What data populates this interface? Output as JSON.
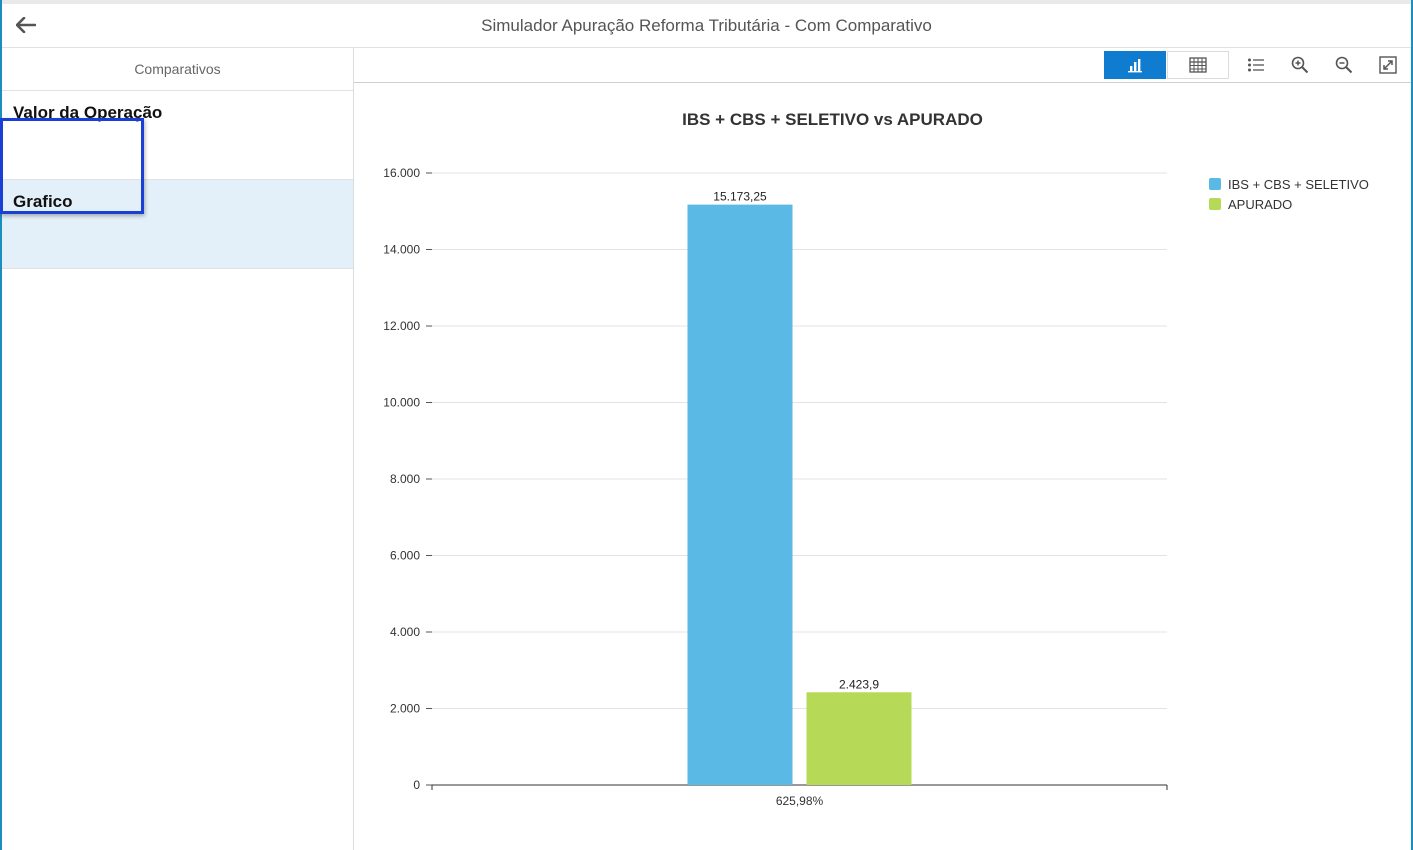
{
  "header": {
    "title": "Simulador Apuração Reforma Tributária - Com Comparativo"
  },
  "sidebar": {
    "title": "Comparativos",
    "items": [
      {
        "label": "Valor da Operação"
      },
      {
        "label": "Grafico"
      }
    ]
  },
  "toolbar": {
    "buttons": [
      "chart-icon",
      "table-icon",
      "legend-list-icon",
      "zoom-in-icon",
      "zoom-out-icon",
      "expand-icon"
    ],
    "active": "chart-icon"
  },
  "colors": {
    "accent": "#0f7ccf",
    "series1": "#5bb9e6",
    "series2": "#b6d957"
  },
  "chart_data": {
    "type": "bar",
    "title": "IBS + CBS + SELETIVO vs APURADO",
    "categories": [
      "625,98%"
    ],
    "series": [
      {
        "name": "IBS + CBS + SELETIVO",
        "values": [
          15173.25
        ],
        "label": "15.173,25",
        "color": "#5bb9e6"
      },
      {
        "name": "APURADO",
        "values": [
          2423.9
        ],
        "label": "2.423,9",
        "color": "#b6d957"
      }
    ],
    "ylim": [
      0,
      16000
    ],
    "yticks": [
      0,
      2000,
      4000,
      6000,
      8000,
      10000,
      12000,
      14000,
      16000
    ],
    "ytick_labels": [
      "0",
      "2.000",
      "4.000",
      "6.000",
      "8.000",
      "10.000",
      "12.000",
      "14.000",
      "16.000"
    ],
    "grid": true,
    "legend": "top-right"
  }
}
